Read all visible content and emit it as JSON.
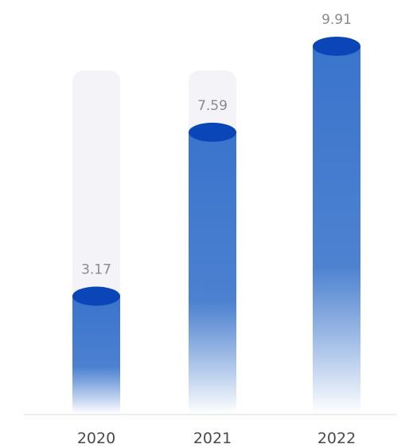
{
  "chart_data": {
    "type": "bar",
    "title": "",
    "xlabel": "",
    "ylabel": "",
    "categories": [
      "2020",
      "2021",
      "2022"
    ],
    "values": [
      3.17,
      7.59,
      9.91
    ],
    "value_labels": [
      "3.17",
      "7.59",
      "9.91"
    ],
    "ylim": [
      0,
      9.91
    ],
    "background_track_max": 9.0,
    "grid": false,
    "legend": "none"
  },
  "colors": {
    "bar_top": "#3a74cc",
    "bar_bottom": "#ffffff",
    "cap": "#0a46b8",
    "track": "#f3f3f8",
    "axis": "#d9d9d9"
  }
}
